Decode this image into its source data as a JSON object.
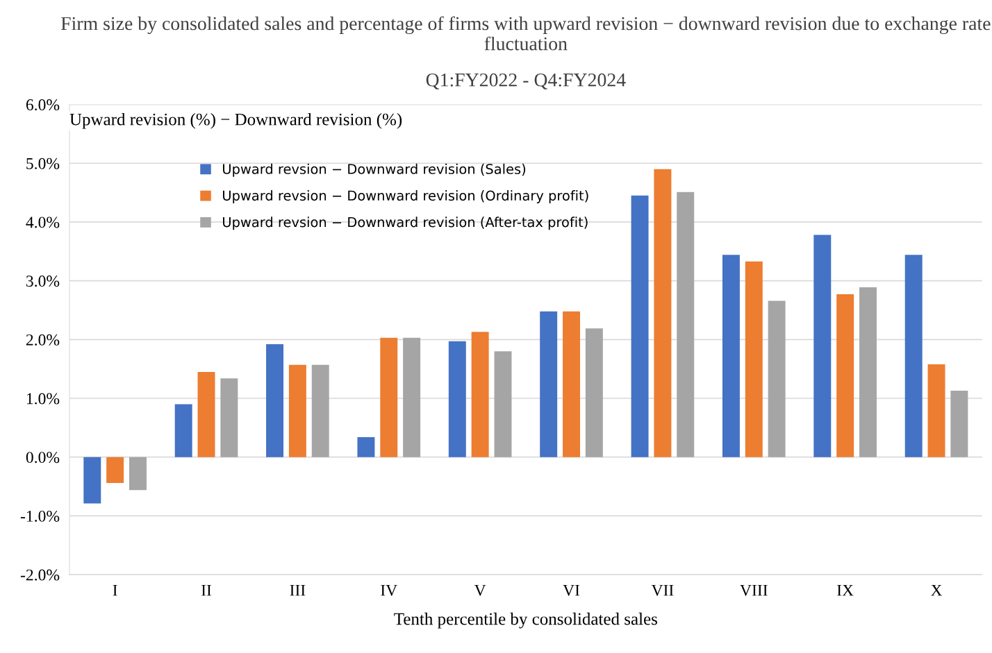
{
  "chart_data": {
    "type": "bar",
    "title": "Firm size by consolidated sales and percentage of firms with upward revision − downward revision due to exchange rate fluctuation",
    "subtitle": "Q1:FY2022 - Q4:FY2024",
    "xlabel": "Tenth percentile by consolidated sales",
    "ylabel": "Upward revision (%) − Downward revision (%)",
    "categories": [
      "I",
      "II",
      "III",
      "IV",
      "V",
      "VI",
      "VII",
      "VIII",
      "IX",
      "X"
    ],
    "series": [
      {
        "name": "Upward revsion − Downward revision (Sales)",
        "color": "#4472c4",
        "values": [
          -0.79,
          0.9,
          1.92,
          0.34,
          1.97,
          2.48,
          4.45,
          3.44,
          3.78,
          3.44
        ]
      },
      {
        "name": "Upward revsion − Downward revision (Ordinary profit)",
        "color": "#ed7d31",
        "values": [
          -0.44,
          1.45,
          1.57,
          2.03,
          2.13,
          2.48,
          4.9,
          3.33,
          2.77,
          1.58
        ]
      },
      {
        "name": "Upward revsion − Downward revision (After-tax profit)",
        "color": "#a5a5a5",
        "values": [
          -0.56,
          1.34,
          1.57,
          2.03,
          1.8,
          2.19,
          4.51,
          2.66,
          2.89,
          1.13
        ]
      }
    ],
    "ylim": [
      -2,
      6
    ],
    "yticks": [
      {
        "value": -2,
        "label": "-2.0%"
      },
      {
        "value": -1,
        "label": "-1.0%"
      },
      {
        "value": 0,
        "label": "0.0%"
      },
      {
        "value": 1,
        "label": "1.0%"
      },
      {
        "value": 2,
        "label": "2.0%"
      },
      {
        "value": 3,
        "label": "3.0%"
      },
      {
        "value": 4,
        "label": "4.0%"
      },
      {
        "value": 5,
        "label": "5.0%"
      },
      {
        "value": 6,
        "label": "6.0%"
      }
    ],
    "grid": "y",
    "legend": "top left"
  }
}
